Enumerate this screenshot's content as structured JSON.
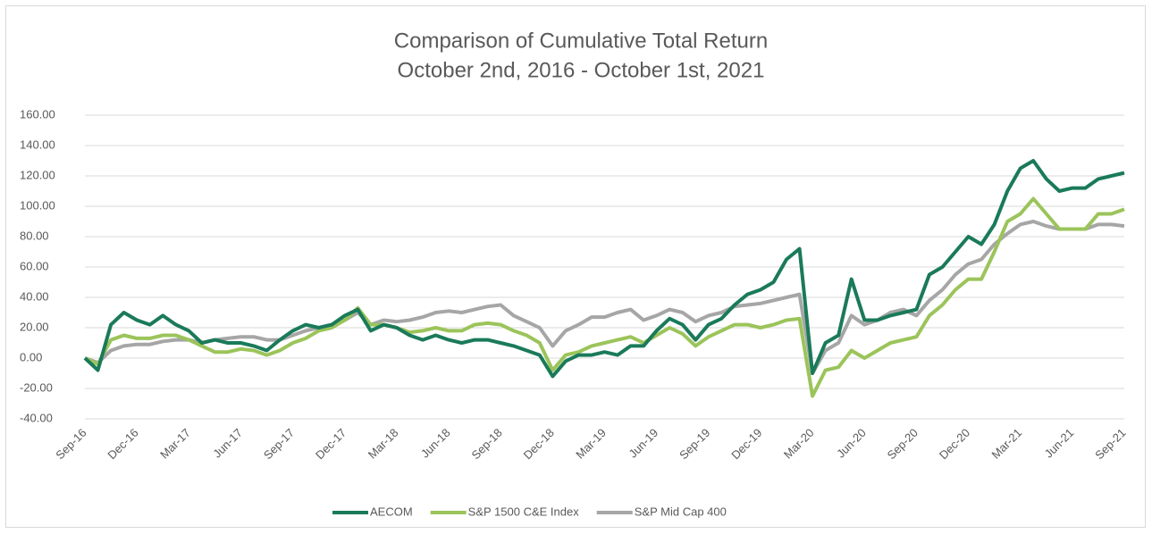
{
  "chart_data": {
    "type": "line",
    "title": "Comparison of Cumulative Total Return",
    "subtitle": "October 2nd, 2016 - October 1st, 2021",
    "categories": [
      "Sep-16",
      null,
      null,
      null,
      "Dec-16",
      null,
      null,
      null,
      "Mar-17",
      null,
      null,
      null,
      "Jun-17",
      null,
      null,
      null,
      "Sep-17",
      null,
      null,
      null,
      "Dec-17",
      null,
      null,
      null,
      "Mar-18",
      null,
      null,
      null,
      "Jun-18",
      null,
      null,
      null,
      "Sep-18",
      null,
      null,
      null,
      "Dec-18",
      null,
      null,
      null,
      "Mar-19",
      null,
      null,
      null,
      "Jun-19",
      null,
      null,
      null,
      "Sep-19",
      null,
      null,
      null,
      "Dec-19",
      null,
      null,
      null,
      "Mar-20",
      null,
      null,
      null,
      "Jun-20",
      null,
      null,
      null,
      "Sep-20",
      null,
      null,
      null,
      "Dec-20",
      null,
      null,
      null,
      "Mar-21",
      null,
      null,
      null,
      "Jun-21",
      null,
      null,
      null,
      "Sep-21"
    ],
    "series": [
      {
        "name": "AECOM",
        "color": "#1a7a5a",
        "values": [
          0,
          -8,
          22,
          30,
          25,
          22,
          28,
          22,
          18,
          10,
          12,
          10,
          10,
          8,
          5,
          12,
          18,
          22,
          20,
          22,
          28,
          32,
          18,
          22,
          20,
          15,
          12,
          15,
          12,
          10,
          12,
          12,
          10,
          8,
          5,
          2,
          -12,
          -2,
          2,
          2,
          4,
          2,
          8,
          8,
          18,
          26,
          22,
          12,
          22,
          26,
          35,
          42,
          45,
          50,
          65,
          72,
          -10,
          10,
          15,
          52,
          25,
          25,
          28,
          30,
          32,
          55,
          60,
          70,
          80,
          75,
          88,
          110,
          125,
          130,
          118,
          110,
          112,
          112,
          118,
          120,
          122
        ]
      },
      {
        "name": "S&P 1500 C&E Index",
        "color": "#9bc45a",
        "values": [
          0,
          -4,
          12,
          15,
          13,
          13,
          15,
          15,
          12,
          8,
          4,
          4,
          6,
          5,
          2,
          5,
          10,
          13,
          18,
          20,
          25,
          33,
          22,
          22,
          20,
          17,
          18,
          20,
          18,
          18,
          22,
          23,
          22,
          18,
          15,
          10,
          -8,
          2,
          4,
          8,
          10,
          12,
          14,
          10,
          15,
          20,
          16,
          8,
          14,
          18,
          22,
          22,
          20,
          22,
          25,
          26,
          -25,
          -8,
          -6,
          5,
          0,
          5,
          10,
          12,
          14,
          28,
          35,
          45,
          52,
          52,
          70,
          90,
          95,
          105,
          95,
          85,
          85,
          85,
          95,
          95,
          98
        ]
      },
      {
        "name": "S&P Mid Cap 400",
        "color": "#a6a6a6",
        "values": [
          0,
          -3,
          5,
          8,
          9,
          9,
          11,
          12,
          12,
          10,
          12,
          13,
          14,
          14,
          12,
          12,
          15,
          18,
          20,
          22,
          25,
          30,
          22,
          25,
          24,
          25,
          27,
          30,
          31,
          30,
          32,
          34,
          35,
          28,
          24,
          20,
          8,
          18,
          22,
          27,
          27,
          30,
          32,
          25,
          28,
          32,
          30,
          24,
          28,
          30,
          34,
          35,
          36,
          38,
          40,
          42,
          -10,
          5,
          10,
          28,
          22,
          25,
          30,
          32,
          28,
          38,
          45,
          55,
          62,
          65,
          75,
          82,
          88,
          90,
          87,
          85,
          85,
          85,
          88,
          88,
          87
        ]
      }
    ],
    "ylim": [
      -40,
      160
    ],
    "yticks": [
      {
        "value": -40,
        "label": "-40.00"
      },
      {
        "value": -20,
        "label": "-20.00"
      },
      {
        "value": 0,
        "label": "0.00"
      },
      {
        "value": 20,
        "label": "20.00"
      },
      {
        "value": 40,
        "label": "40.00"
      },
      {
        "value": 60,
        "label": "60.00"
      },
      {
        "value": 80,
        "label": "80.00"
      },
      {
        "value": 100,
        "label": "100.00"
      },
      {
        "value": 120,
        "label": "120.00"
      },
      {
        "value": 140,
        "label": "140.00"
      },
      {
        "value": 160,
        "label": "160.00"
      }
    ],
    "grid": true,
    "legend": "bottom"
  }
}
